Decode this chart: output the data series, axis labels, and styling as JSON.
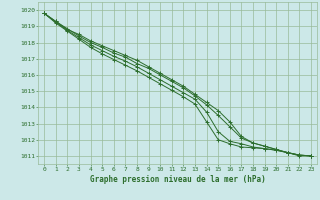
{
  "background_color": "#cce8e8",
  "grid_color": "#99bb99",
  "line_color": "#2d6e2d",
  "marker_color": "#2d6e2d",
  "title": "Graphe pression niveau de la mer (hPa)",
  "title_color": "#2d6e2d",
  "xlim": [
    -0.5,
    23.5
  ],
  "ylim": [
    1010.5,
    1020.5
  ],
  "yticks": [
    1011,
    1012,
    1013,
    1014,
    1015,
    1016,
    1017,
    1018,
    1019,
    1020
  ],
  "xticks": [
    0,
    1,
    2,
    3,
    4,
    5,
    6,
    7,
    8,
    9,
    10,
    11,
    12,
    13,
    14,
    15,
    16,
    17,
    18,
    19,
    20,
    21,
    22,
    23
  ],
  "series": [
    [
      1019.8,
      1019.3,
      1018.8,
      1018.5,
      1018.1,
      1017.8,
      1017.5,
      1017.2,
      1016.9,
      1016.5,
      1016.1,
      1015.7,
      1015.3,
      1014.8,
      1014.3,
      1013.8,
      1013.1,
      1012.2,
      1011.8,
      1011.6,
      1011.4,
      1011.2,
      1011.0,
      1011.0
    ],
    [
      1019.8,
      1019.3,
      1018.85,
      1018.4,
      1018.0,
      1017.7,
      1017.35,
      1017.1,
      1016.7,
      1016.4,
      1016.0,
      1015.6,
      1015.2,
      1014.7,
      1014.15,
      1013.5,
      1012.8,
      1012.1,
      1011.8,
      1011.6,
      1011.4,
      1011.2,
      1011.05,
      1011.0
    ],
    [
      1019.8,
      1019.25,
      1018.75,
      1018.3,
      1017.85,
      1017.5,
      1017.15,
      1016.85,
      1016.5,
      1016.1,
      1015.7,
      1015.3,
      1014.9,
      1014.5,
      1013.7,
      1012.5,
      1011.9,
      1011.75,
      1011.55,
      1011.45,
      1011.35,
      1011.2,
      1011.05,
      1011.0
    ],
    [
      1019.8,
      1019.2,
      1018.7,
      1018.2,
      1017.7,
      1017.3,
      1016.95,
      1016.6,
      1016.25,
      1015.85,
      1015.45,
      1015.05,
      1014.65,
      1014.2,
      1013.1,
      1012.0,
      1011.75,
      1011.55,
      1011.5,
      1011.45,
      1011.35,
      1011.2,
      1011.05,
      1011.0
    ]
  ]
}
